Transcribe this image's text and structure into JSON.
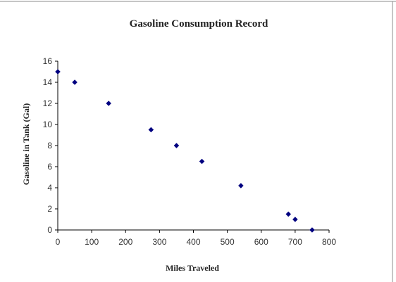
{
  "chart_data": {
    "type": "scatter",
    "title": "Gasoline Consumption Record",
    "xlabel": "Miles Traveled",
    "ylabel": "Gasoline in Tank (Gal)",
    "xlim": [
      0,
      800
    ],
    "ylim": [
      0,
      16
    ],
    "xticks": [
      "0",
      "100",
      "200",
      "300",
      "400",
      "500",
      "600",
      "700",
      "800"
    ],
    "yticks": [
      "0",
      "2",
      "4",
      "6",
      "8",
      "10",
      "12",
      "14",
      "16"
    ],
    "grid": false,
    "legend": "none",
    "marker_color": "#000080",
    "marker": "diamond",
    "points": [
      {
        "x": 0,
        "y": 15
      },
      {
        "x": 50,
        "y": 14
      },
      {
        "x": 150,
        "y": 12
      },
      {
        "x": 275,
        "y": 9.5
      },
      {
        "x": 350,
        "y": 8
      },
      {
        "x": 425,
        "y": 6.5
      },
      {
        "x": 540,
        "y": 4.2
      },
      {
        "x": 680,
        "y": 1.5
      },
      {
        "x": 700,
        "y": 1
      },
      {
        "x": 750,
        "y": 0
      }
    ]
  }
}
